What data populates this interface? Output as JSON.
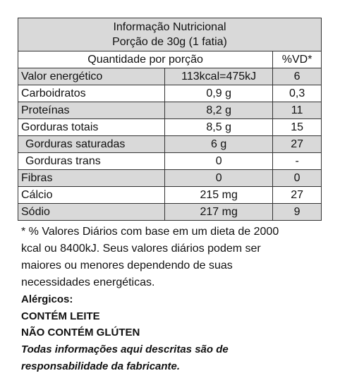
{
  "header": {
    "title": "Informação Nutricional",
    "serving": "Porção de 30g (1 fatia)"
  },
  "table": {
    "columns": [
      "Quantidade por porção",
      "%VD*"
    ],
    "rows": [
      [
        "Valor energético",
        "113kcal=475kJ",
        "6"
      ],
      [
        "Carboidratos",
        "0,9 g",
        "0,3"
      ],
      [
        "Proteínas",
        "8,2 g",
        "11"
      ],
      [
        "Gorduras totais",
        "8,5 g",
        "15"
      ],
      [
        "Gorduras saturadas",
        "6 g",
        "27"
      ],
      [
        "Gorduras trans",
        "0",
        "-"
      ],
      [
        "Fibras",
        "0",
        "0"
      ],
      [
        "Cálcio",
        "215 mg",
        "27"
      ],
      [
        "Sódio",
        "217 mg",
        "9"
      ]
    ]
  },
  "footnote": [
    "* % Valores Diários com base em um dieta de 2000",
    "kcal ou 8400kJ. Seus valores diários podem ser",
    "maiores ou menores dependendo de suas",
    "necessidades energéticas."
  ],
  "allergens": {
    "title": "Alérgicos:",
    "items": [
      "CONTÉM LEITE",
      "NÃO CONTÉM GLÚTEN"
    ]
  },
  "disclaimer": [
    "Todas informações aqui descritas são de",
    "responsabilidade da fabricante."
  ]
}
